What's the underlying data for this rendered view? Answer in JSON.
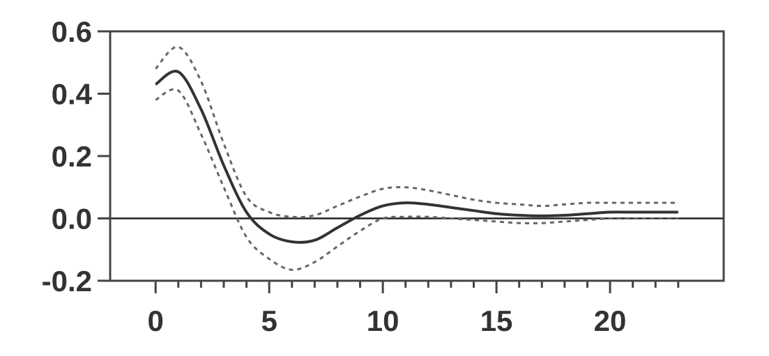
{
  "chart_data": {
    "type": "line",
    "title": "",
    "xlabel": "",
    "ylabel": "",
    "xlim": [
      -2,
      25
    ],
    "ylim": [
      -0.2,
      0.6
    ],
    "x_major_ticks": [
      0,
      5,
      10,
      15,
      20
    ],
    "x_minor_ticks": [
      0,
      1,
      2,
      3,
      4,
      5,
      6,
      7,
      8,
      9,
      10,
      11,
      12,
      13,
      14,
      15,
      16,
      17,
      18,
      19,
      20,
      21,
      22,
      23
    ],
    "y_ticks": [
      -0.2,
      0.0,
      0.2,
      0.4,
      0.6
    ],
    "x_tick_labels": [
      "0",
      "5",
      "10",
      "15",
      "20"
    ],
    "y_tick_labels": [
      "-0.2",
      "0.0",
      "0.2",
      "0.4",
      "0.6"
    ],
    "reference_line_y": 0.0,
    "grid": false,
    "series": [
      {
        "role": "estimate",
        "style": "solid",
        "x": [
          0,
          1,
          2,
          3,
          4,
          5,
          6,
          7,
          8,
          9,
          10,
          11,
          12,
          13,
          14,
          15,
          16,
          17,
          18,
          19,
          20,
          21,
          22,
          23
        ],
        "values": [
          0.43,
          0.47,
          0.35,
          0.17,
          0.02,
          -0.05,
          -0.075,
          -0.07,
          -0.03,
          0.01,
          0.04,
          0.05,
          0.045,
          0.035,
          0.025,
          0.015,
          0.01,
          0.008,
          0.01,
          0.015,
          0.02,
          0.02,
          0.02,
          0.02
        ]
      },
      {
        "role": "upper-bound",
        "style": "dashed",
        "x": [
          0,
          1,
          2,
          3,
          4,
          5,
          6,
          7,
          8,
          9,
          10,
          11,
          12,
          13,
          14,
          15,
          16,
          17,
          18,
          19,
          20,
          21,
          22,
          23
        ],
        "values": [
          0.48,
          0.55,
          0.44,
          0.24,
          0.07,
          0.02,
          0.005,
          0.01,
          0.04,
          0.07,
          0.095,
          0.1,
          0.09,
          0.075,
          0.06,
          0.05,
          0.045,
          0.04,
          0.045,
          0.05,
          0.05,
          0.05,
          0.05,
          0.05
        ]
      },
      {
        "role": "lower-bound",
        "style": "dashed",
        "x": [
          0,
          1,
          2,
          3,
          4,
          5,
          6,
          7,
          8,
          9,
          10,
          11,
          12,
          13,
          14,
          15,
          16,
          17,
          18,
          19,
          20,
          21,
          22,
          23
        ],
        "values": [
          0.38,
          0.41,
          0.27,
          0.1,
          -0.06,
          -0.13,
          -0.165,
          -0.14,
          -0.09,
          -0.04,
          0.0,
          0.005,
          0.005,
          0.0,
          -0.005,
          -0.01,
          -0.015,
          -0.015,
          -0.01,
          -0.005,
          0.0,
          0.0,
          0.0,
          0.0
        ]
      }
    ]
  }
}
